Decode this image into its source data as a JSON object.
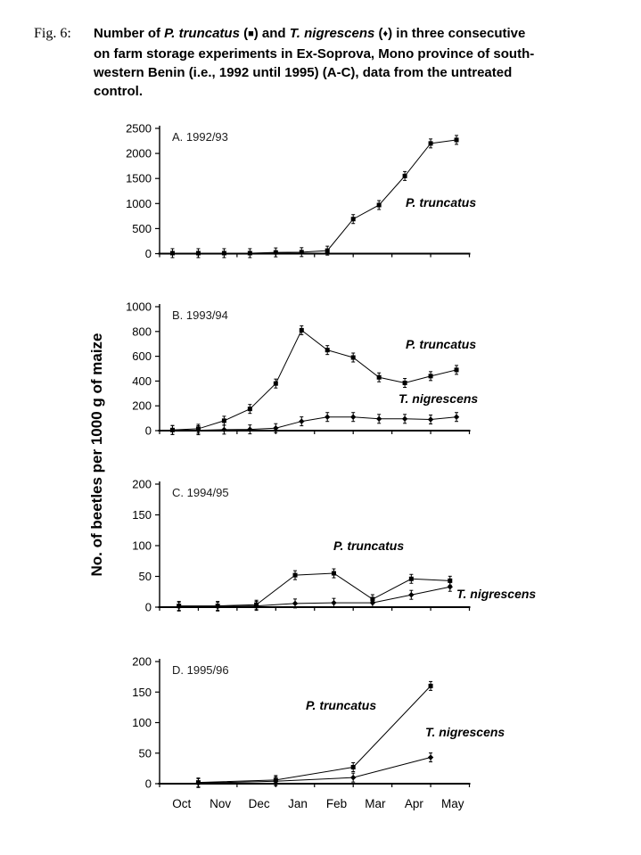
{
  "figure": {
    "label": "Fig. 6:",
    "caption_lines": [
      [
        {
          "t": "Number of "
        },
        {
          "t": "P. truncatus",
          "i": 1
        },
        {
          "t": " ("
        },
        {
          "t": "■",
          "s": 1
        },
        {
          "t": ") and "
        },
        {
          "t": "T. nigrescens",
          "i": 1
        },
        {
          "t": " ("
        },
        {
          "t": "♦",
          "s": 1
        },
        {
          "t": ") in three consecutive"
        }
      ],
      [
        {
          "t": "on farm storage experiments in Ex-Soprova, Mono province of south-"
        }
      ],
      [
        {
          "t": "western Benin (i.e., 1992 until 1995) (A-C), data from the untreated"
        }
      ],
      [
        {
          "t": "control."
        }
      ]
    ]
  },
  "ylabel": "No. of beetles per 1000 g of maize",
  "months": [
    "Oct",
    "Nov",
    "Dec",
    "Jan",
    "Feb",
    "Mar",
    "Apr",
    "May"
  ],
  "chart_data": [
    {
      "id": "A",
      "type": "line",
      "title": "A. 1992/93",
      "xlim": [
        0,
        8
      ],
      "ylim": [
        0,
        2500
      ],
      "yticks": [
        0,
        500,
        1000,
        1500,
        2000,
        2500
      ],
      "categories": [
        "Oct",
        "Nov",
        "Dec",
        "Jan",
        "Feb",
        "Mar",
        "Apr",
        "May"
      ],
      "series": [
        {
          "name": "P. truncatus",
          "marker": "square",
          "x": [
            0.333,
            1.0,
            1.667,
            2.333,
            3.0,
            3.667,
            4.333,
            5.0,
            5.667,
            6.333,
            7.0,
            7.667
          ],
          "y": [
            10,
            10,
            10,
            10,
            25,
            30,
            60,
            690,
            970,
            1550,
            2200,
            2270
          ]
        }
      ]
    },
    {
      "id": "B",
      "type": "line",
      "title": "B. 1993/94",
      "xlim": [
        0,
        8
      ],
      "ylim": [
        0,
        1000
      ],
      "yticks": [
        0,
        200,
        400,
        600,
        800,
        1000
      ],
      "categories": [
        "Oct",
        "Nov",
        "Dec",
        "Jan",
        "Feb",
        "Mar",
        "Apr",
        "May"
      ],
      "series": [
        {
          "name": "P. truncatus",
          "marker": "square",
          "x": [
            0.333,
            1.0,
            1.667,
            2.333,
            3.0,
            3.667,
            4.333,
            5.0,
            5.667,
            6.333,
            7.0,
            7.667
          ],
          "y": [
            5,
            15,
            80,
            175,
            380,
            810,
            650,
            590,
            430,
            385,
            440,
            490
          ]
        },
        {
          "name": "T. nigrescens",
          "marker": "diamond",
          "x": [
            0.333,
            1.0,
            1.667,
            2.333,
            3.0,
            3.667,
            4.333,
            5.0,
            5.667,
            6.333,
            7.0,
            7.667
          ],
          "y": [
            5,
            3,
            8,
            10,
            20,
            75,
            110,
            110,
            95,
            95,
            90,
            110
          ]
        }
      ]
    },
    {
      "id": "C",
      "type": "line",
      "title": "C. 1994/95",
      "xlim": [
        0,
        8
      ],
      "ylim": [
        0,
        200
      ],
      "yticks": [
        0,
        50,
        100,
        150,
        200
      ],
      "categories": [
        "Oct",
        "Nov",
        "Dec",
        "Jan",
        "Feb",
        "Mar",
        "Apr",
        "May"
      ],
      "series": [
        {
          "name": "P. truncatus",
          "marker": "square",
          "x": [
            0.5,
            1.5,
            2.5,
            3.5,
            4.5,
            5.5,
            6.5,
            7.5
          ],
          "y": [
            2,
            2,
            4,
            52,
            55,
            13,
            46,
            43
          ]
        },
        {
          "name": "T. nigrescens",
          "marker": "diamond",
          "x": [
            0.5,
            1.5,
            2.5,
            3.5,
            4.5,
            5.5,
            6.5,
            7.5
          ],
          "y": [
            1,
            1,
            2,
            6,
            7,
            7,
            20,
            33
          ]
        }
      ]
    },
    {
      "id": "D",
      "type": "line",
      "title": "D. 1995/96",
      "xlim": [
        0,
        8
      ],
      "ylim": [
        0,
        200
      ],
      "yticks": [
        0,
        50,
        100,
        150,
        200
      ],
      "categories": [
        "Oct",
        "Nov",
        "Dec",
        "Jan",
        "Feb",
        "Mar",
        "Apr",
        "May"
      ],
      "show_month_labels": true,
      "series": [
        {
          "name": "P. truncatus",
          "marker": "square",
          "x": [
            1,
            3,
            5,
            7
          ],
          "y": [
            2,
            6,
            27,
            160
          ]
        },
        {
          "name": "T. nigrescens",
          "marker": "diamond",
          "x": [
            1,
            3,
            5,
            7
          ],
          "y": [
            1,
            4,
            10,
            43
          ]
        }
      ]
    }
  ]
}
